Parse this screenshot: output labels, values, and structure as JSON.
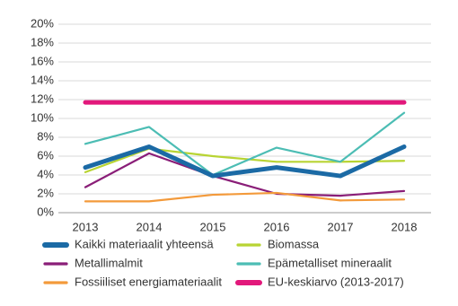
{
  "chart_data": {
    "type": "line",
    "categories": [
      "2013",
      "2014",
      "2015",
      "2016",
      "2017",
      "2018"
    ],
    "series": [
      {
        "name": "Kaikki materiaalit yhteensä",
        "color": "#1b6aa5",
        "values": [
          4.8,
          7.0,
          3.9,
          4.8,
          3.9,
          7.0
        ]
      },
      {
        "name": "Biomassa",
        "color": "#b8d433",
        "values": [
          4.3,
          6.8,
          6.0,
          5.4,
          5.4,
          5.5
        ]
      },
      {
        "name": "Metallimalmit",
        "color": "#8a1e78",
        "values": [
          2.7,
          6.3,
          3.9,
          2.0,
          1.8,
          2.3
        ]
      },
      {
        "name": "Epämetalliset mineraalit",
        "color": "#4cbdb4",
        "values": [
          7.3,
          9.1,
          4.0,
          6.9,
          5.4,
          10.6
        ]
      },
      {
        "name": "Fossiiliset energiamateriaalit",
        "color": "#f39a3b",
        "values": [
          1.2,
          1.2,
          1.9,
          2.1,
          1.3,
          1.4
        ]
      },
      {
        "name": "EU-keskiarvo (2013-2017)",
        "color": "#e2187b",
        "values": [
          11.7,
          11.7,
          11.7,
          11.7,
          11.7,
          11.7
        ]
      }
    ],
    "ylim": [
      0,
      20
    ],
    "yticks": [
      {
        "value": 0,
        "label": "0%"
      },
      {
        "value": 2,
        "label": "2%"
      },
      {
        "value": 4,
        "label": "4%"
      },
      {
        "value": 6,
        "label": "6%"
      },
      {
        "value": 8,
        "label": "8%"
      },
      {
        "value": 10,
        "label": "10%"
      },
      {
        "value": 12,
        "label": "12%"
      },
      {
        "value": 14,
        "label": "14%"
      },
      {
        "value": 16,
        "label": "16%"
      },
      {
        "value": 18,
        "label": "18%"
      },
      {
        "value": 20,
        "label": "20%"
      }
    ],
    "grid": true
  }
}
